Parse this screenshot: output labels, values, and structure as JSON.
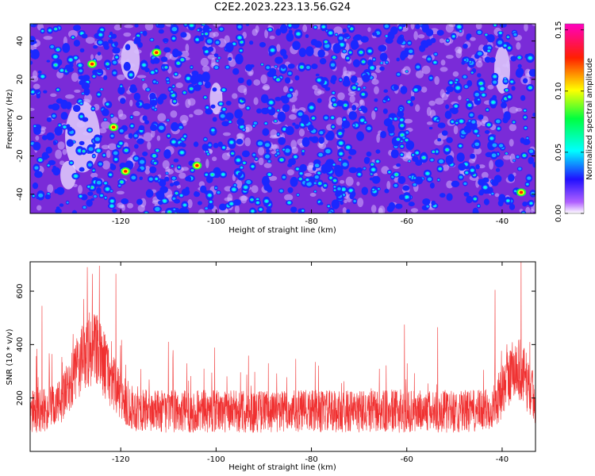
{
  "title": "C2E2.2023.223.13.56.G24",
  "chart_data": [
    {
      "type": "heatmap",
      "xlabel": "Height of straight line (km)",
      "ylabel": "Frequency (Hz)",
      "xlim": [
        -139,
        -33
      ],
      "ylim": [
        -50,
        49
      ],
      "xticks": [
        -120,
        -100,
        -80,
        -60,
        -40
      ],
      "yticks": [
        -40,
        -20,
        0,
        20,
        40
      ],
      "colorbar": {
        "label": "Normalized spectral amplitude",
        "range": [
          0.0,
          0.155
        ],
        "ticks": [
          "0.00",
          "0.05",
          "0.10",
          "0.15"
        ],
        "colormap": "rainbow (white-violet-blue-cyan-green-yellow-red-magenta)"
      },
      "hotspots": [
        {
          "x": -126,
          "y": 28
        },
        {
          "x": -112.5,
          "y": 34
        },
        {
          "x": -119,
          "y": -28
        },
        {
          "x": -104,
          "y": -25
        },
        {
          "x": -36,
          "y": -39
        },
        {
          "x": -121.5,
          "y": -5
        }
      ],
      "grid": false
    },
    {
      "type": "line",
      "xlabel": "Height of straight line (km)",
      "ylabel": "SNR (10 * v/v)",
      "xlim": [
        -139,
        -33
      ],
      "ylim": [
        0,
        710
      ],
      "xticks": [
        -120,
        -100,
        -80,
        -60,
        -40
      ],
      "yticks": [
        200,
        400,
        600
      ],
      "series_color": "#f03030",
      "baseline_mean": 150,
      "baseline_spread": 80,
      "peaks": [
        {
          "x": -126,
          "height": 230,
          "width": 5
        },
        {
          "x": -37,
          "height": 160,
          "width": 3.5
        }
      ],
      "spikes": [
        {
          "x": -136.5,
          "y": 545
        },
        {
          "x": -127,
          "y": 690
        },
        {
          "x": -124.5,
          "y": 695
        },
        {
          "x": -121,
          "y": 665
        },
        {
          "x": -60.5,
          "y": 475
        },
        {
          "x": -53.5,
          "y": 465
        },
        {
          "x": -41.5,
          "y": 605
        },
        {
          "x": -36,
          "y": 710
        }
      ],
      "grid": false
    }
  ]
}
